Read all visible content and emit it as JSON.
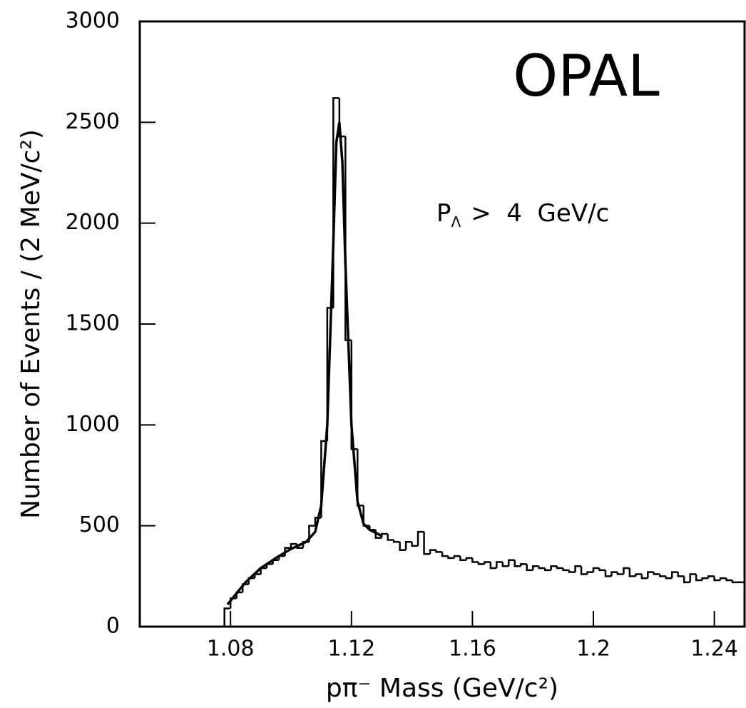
{
  "chart_data": {
    "type": "histogram",
    "y_label": "Number of Events / (2 MeV/c²)",
    "x_label": "pπ⁻ Mass (GeV/c²)",
    "title": "OPAL",
    "annotation": {
      "main": "P",
      "sub": "Λ",
      "rest": ">  4  GeV/c"
    },
    "xlim": [
      1.05,
      1.25
    ],
    "ylim": [
      0,
      3000
    ],
    "xticks": [
      1.08,
      1.12,
      1.16,
      1.2,
      1.24
    ],
    "yticks": [
      0,
      500,
      1000,
      1500,
      2000,
      2500,
      3000
    ],
    "color": "#000000",
    "bins": [
      1.078,
      1.08,
      1.082,
      1.084,
      1.086,
      1.088,
      1.09,
      1.092,
      1.094,
      1.096,
      1.098,
      1.1,
      1.102,
      1.104,
      1.106,
      1.108,
      1.11,
      1.112,
      1.114,
      1.116,
      1.118,
      1.12,
      1.122,
      1.124,
      1.126,
      1.128,
      1.13,
      1.132,
      1.134,
      1.136,
      1.138,
      1.14,
      1.142,
      1.144,
      1.146,
      1.148,
      1.15,
      1.152,
      1.154,
      1.156,
      1.158,
      1.16,
      1.162,
      1.164,
      1.166,
      1.168,
      1.17,
      1.172,
      1.174,
      1.176,
      1.178,
      1.18,
      1.182,
      1.184,
      1.186,
      1.188,
      1.19,
      1.192,
      1.194,
      1.196,
      1.198,
      1.2,
      1.202,
      1.204,
      1.206,
      1.208,
      1.21,
      1.212,
      1.214,
      1.216,
      1.218,
      1.22,
      1.222,
      1.224,
      1.226,
      1.228,
      1.23,
      1.232,
      1.234,
      1.236,
      1.238,
      1.24,
      1.242,
      1.244,
      1.246,
      1.248,
      1.25
    ],
    "counts": [
      90,
      140,
      170,
      210,
      240,
      260,
      290,
      310,
      330,
      350,
      390,
      410,
      390,
      420,
      500,
      540,
      920,
      1580,
      2620,
      2430,
      1420,
      880,
      600,
      500,
      480,
      440,
      460,
      430,
      420,
      380,
      420,
      400,
      470,
      360,
      380,
      370,
      350,
      340,
      350,
      330,
      340,
      320,
      310,
      320,
      290,
      320,
      300,
      330,
      300,
      310,
      280,
      300,
      290,
      280,
      300,
      290,
      280,
      270,
      300,
      260,
      270,
      290,
      280,
      250,
      270,
      260,
      290,
      250,
      260,
      240,
      270,
      260,
      250,
      240,
      270,
      250,
      220,
      260,
      230,
      240,
      250,
      230,
      240,
      230,
      220,
      220
    ],
    "fit": {
      "type": "line",
      "color": "#000000",
      "x": [
        1.079,
        1.085,
        1.09,
        1.095,
        1.1,
        1.105,
        1.108,
        1.11,
        1.112,
        1.114,
        1.115,
        1.116,
        1.117,
        1.118,
        1.12,
        1.122,
        1.124,
        1.126,
        1.13
      ],
      "values": [
        110,
        220,
        290,
        340,
        385,
        420,
        470,
        600,
        1000,
        1900,
        2400,
        2500,
        2300,
        1800,
        1000,
        620,
        510,
        480,
        450
      ]
    }
  }
}
